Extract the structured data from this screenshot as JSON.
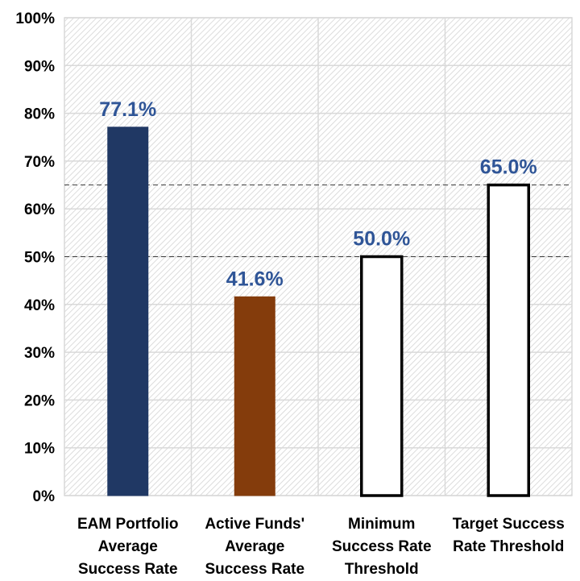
{
  "chart_data": {
    "type": "bar",
    "categories": [
      [
        "EAM Portfolio",
        "Average",
        "Success Rate"
      ],
      [
        "Active Funds'",
        "Average",
        "Success Rate"
      ],
      [
        "Minimum",
        "Success Rate",
        "Threshold"
      ],
      [
        "Target Success",
        "Rate Threshold"
      ]
    ],
    "values": [
      77.1,
      41.6,
      50.0,
      65.0
    ],
    "data_labels": [
      "77.1%",
      "41.6%",
      "50.0%",
      "65.0%"
    ],
    "bar_fills": [
      "#203864",
      "#843C0C",
      "#FFFFFF",
      "#FFFFFF"
    ],
    "bar_outlines": [
      "#203864",
      "#843C0C",
      "#000000",
      "#000000"
    ],
    "data_label_color": "#2F5597",
    "reference_lines": [
      50,
      65
    ],
    "ylim": [
      0,
      100
    ],
    "yticks": [
      "0%",
      "10%",
      "20%",
      "30%",
      "40%",
      "50%",
      "60%",
      "70%",
      "80%",
      "90%",
      "100%"
    ],
    "grid": true,
    "background": "diagonal-hatch",
    "xlabel": "",
    "ylabel": "",
    "title": ""
  }
}
